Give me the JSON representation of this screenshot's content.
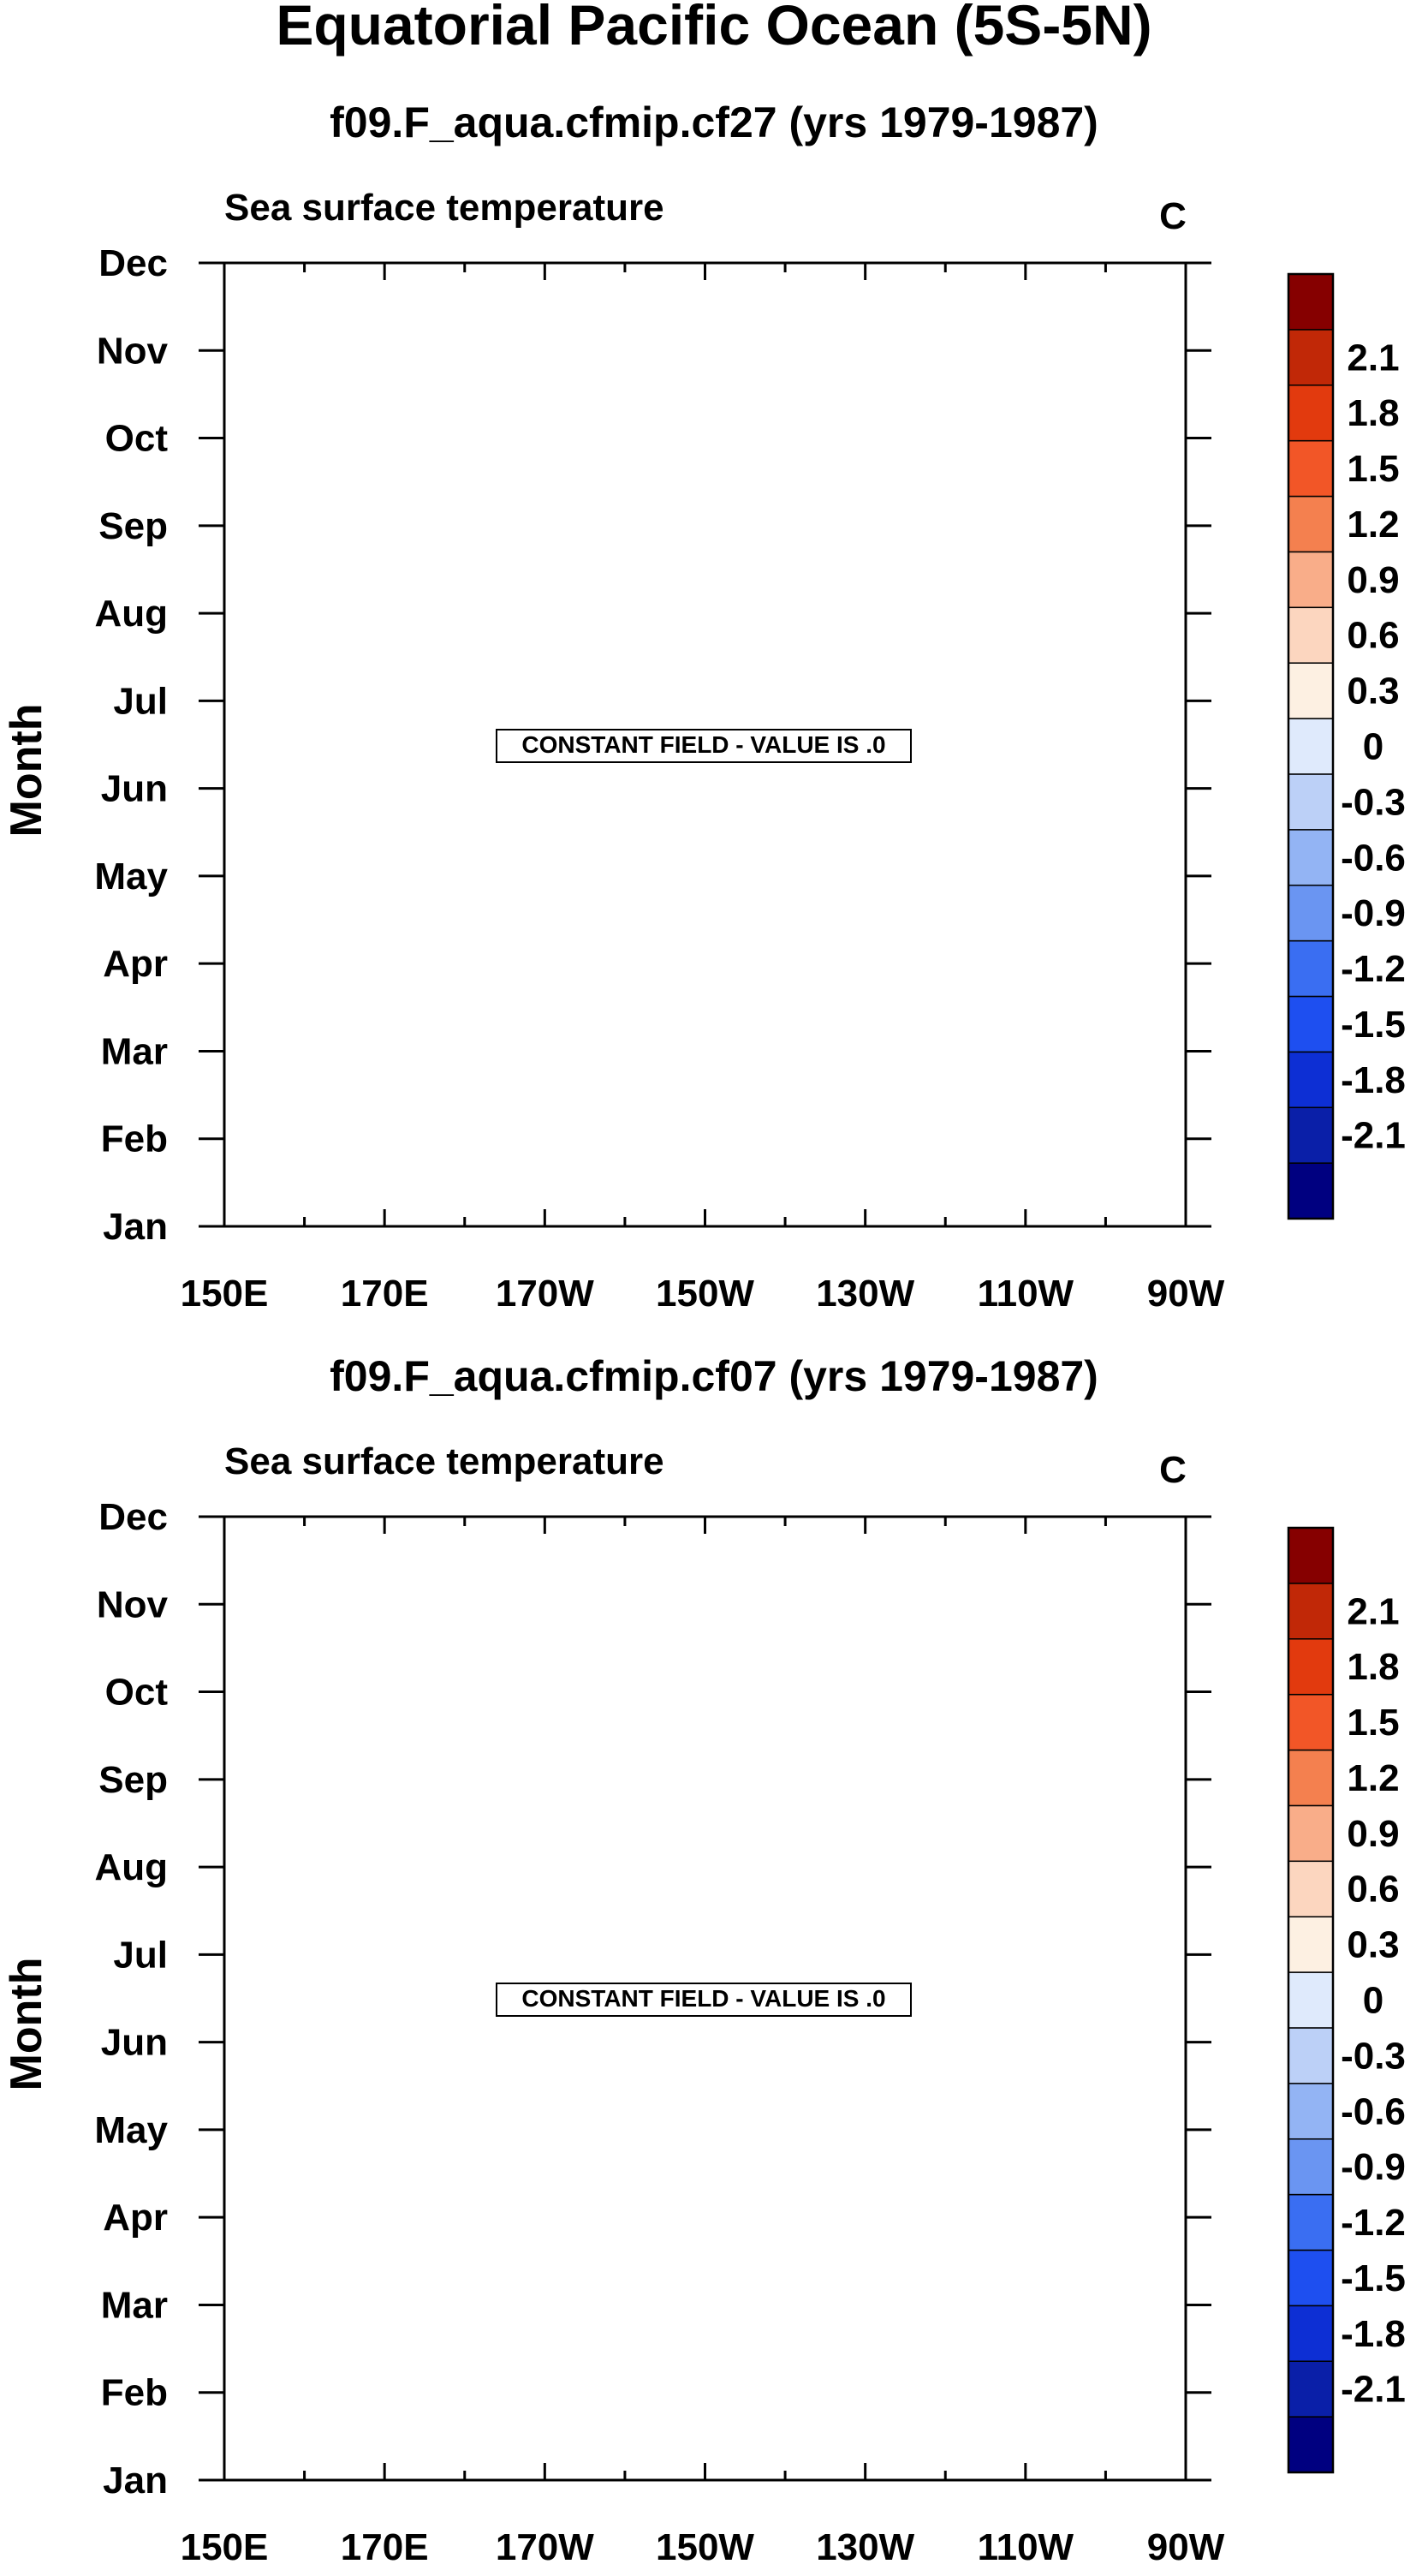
{
  "figure": {
    "title": "Equatorial Pacific Ocean (5S-5N)"
  },
  "colorbar": {
    "colors": [
      "#000080",
      "#0a1fa8",
      "#0d2fd4",
      "#1e4ff0",
      "#3a6ef2",
      "#6a95f2",
      "#93b4f4",
      "#bcd0f7",
      "#dfeafc",
      "#fdf0e2",
      "#fcd6bf",
      "#f9ad89",
      "#f4804f",
      "#f25627",
      "#e23a0e",
      "#c12807",
      "#860000"
    ],
    "labels": [
      "-2.1",
      "-1.8",
      "-1.5",
      "-1.2",
      "-0.9",
      "-0.6",
      "-0.3",
      "0",
      "0.3",
      "0.6",
      "0.9",
      "1.2",
      "1.5",
      "1.8",
      "2.1"
    ]
  },
  "chart_data": [
    {
      "type": "heatmap",
      "title": "f09.F_aqua.cfmip.cf27 (yrs 1979-1987)",
      "subtitle": "Sea surface temperature",
      "units": "C",
      "ylabel": "Month",
      "xlabel": "",
      "x_ticks": [
        "150E",
        "170E",
        "170W",
        "150W",
        "130W",
        "110W",
        "90W"
      ],
      "x_range": [
        150,
        270
      ],
      "y_ticks": [
        "Jan",
        "Feb",
        "Mar",
        "Apr",
        "May",
        "Jun",
        "Jul",
        "Aug",
        "Sep",
        "Oct",
        "Nov",
        "Dec"
      ],
      "annotation": "CONSTANT FIELD - VALUE IS .0",
      "value": 0
    },
    {
      "type": "heatmap",
      "title": "f09.F_aqua.cfmip.cf07 (yrs 1979-1987)",
      "subtitle": "Sea surface temperature",
      "units": "C",
      "ylabel": "Month",
      "xlabel": "",
      "x_ticks": [
        "150E",
        "170E",
        "170W",
        "150W",
        "130W",
        "110W",
        "90W"
      ],
      "x_range": [
        150,
        270
      ],
      "y_ticks": [
        "Jan",
        "Feb",
        "Mar",
        "Apr",
        "May",
        "Jun",
        "Jul",
        "Aug",
        "Sep",
        "Oct",
        "Nov",
        "Dec"
      ],
      "annotation": "CONSTANT FIELD - VALUE IS .0",
      "value": 0
    }
  ]
}
